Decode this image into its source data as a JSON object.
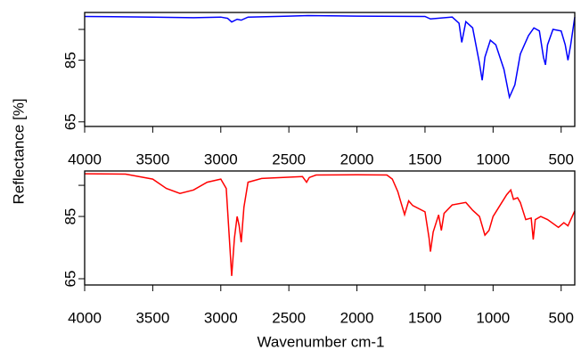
{
  "chart_data": [
    {
      "type": "line",
      "ylabel": "Reflectance [%]",
      "xlim": [
        4000,
        400
      ],
      "xticks": [
        4000,
        3500,
        3000,
        2500,
        2000,
        1500,
        1000,
        500
      ],
      "ylim": [
        63.5,
        100.5
      ],
      "yticks": [
        65,
        85
      ],
      "minor_yticks": [
        95
      ],
      "x": [
        4000,
        3500,
        3200,
        3000,
        2950,
        2920,
        2880,
        2850,
        2800,
        2500,
        2360,
        2000,
        1500,
        1460,
        1300,
        1250,
        1230,
        1200,
        1150,
        1100,
        1080,
        1060,
        1020,
        980,
        920,
        880,
        840,
        800,
        740,
        700,
        660,
        630,
        615,
        600,
        560,
        500,
        470,
        450,
        430,
        400
      ],
      "series": [
        {
          "color": "#0000ff",
          "values": [
            99.2,
            99.0,
            98.8,
            99.0,
            98.6,
            97.4,
            98.3,
            98.0,
            99.0,
            99.3,
            99.5,
            99.3,
            99.2,
            98.4,
            99.0,
            97.0,
            90.8,
            97.5,
            95.5,
            84.0,
            78.5,
            86.0,
            91.5,
            90.0,
            82.0,
            73.0,
            77.0,
            87.0,
            93.0,
            95.5,
            94.5,
            86.0,
            83.5,
            90.0,
            95.0,
            94.5,
            90.0,
            85.0,
            90.0,
            99.0
          ]
        }
      ]
    },
    {
      "type": "line",
      "xlabel": "Wavenumber cm-1",
      "xlim": [
        4000,
        400
      ],
      "xticks": [
        4000,
        3500,
        3000,
        2500,
        2000,
        1500,
        1000,
        500
      ],
      "ylim": [
        63,
        99.6
      ],
      "yticks": [
        65,
        85
      ],
      "minor_yticks": [
        95
      ],
      "x": [
        4000,
        3700,
        3500,
        3400,
        3300,
        3200,
        3100,
        3000,
        2960,
        2940,
        2920,
        2900,
        2880,
        2865,
        2850,
        2830,
        2800,
        2700,
        2400,
        2370,
        2350,
        2300,
        2000,
        1780,
        1740,
        1700,
        1680,
        1650,
        1620,
        1590,
        1500,
        1470,
        1460,
        1440,
        1400,
        1380,
        1360,
        1300,
        1200,
        1150,
        1100,
        1060,
        1030,
        1000,
        950,
        900,
        870,
        850,
        820,
        800,
        760,
        720,
        705,
        690,
        650,
        600,
        520,
        480,
        450,
        400
      ],
      "series": [
        {
          "color": "#ff0000",
          "values": [
            98.7,
            98.6,
            97.0,
            94.0,
            92.4,
            93.5,
            96.0,
            97.0,
            94.0,
            80.0,
            65.9,
            78.0,
            85.0,
            82.0,
            76.7,
            88.0,
            96.0,
            97.2,
            97.8,
            96.0,
            97.5,
            98.3,
            98.4,
            98.3,
            97.0,
            93.0,
            90.0,
            85.6,
            90.0,
            88.5,
            86.5,
            78.0,
            73.7,
            80.0,
            85.5,
            80.5,
            86.0,
            88.7,
            89.5,
            87.0,
            85.0,
            79.0,
            80.5,
            85.0,
            88.5,
            92.0,
            93.5,
            90.5,
            91.0,
            89.5,
            84.0,
            84.5,
            77.6,
            84.0,
            85.0,
            84.0,
            81.5,
            83.0,
            82.0,
            86.8
          ]
        }
      ]
    }
  ]
}
